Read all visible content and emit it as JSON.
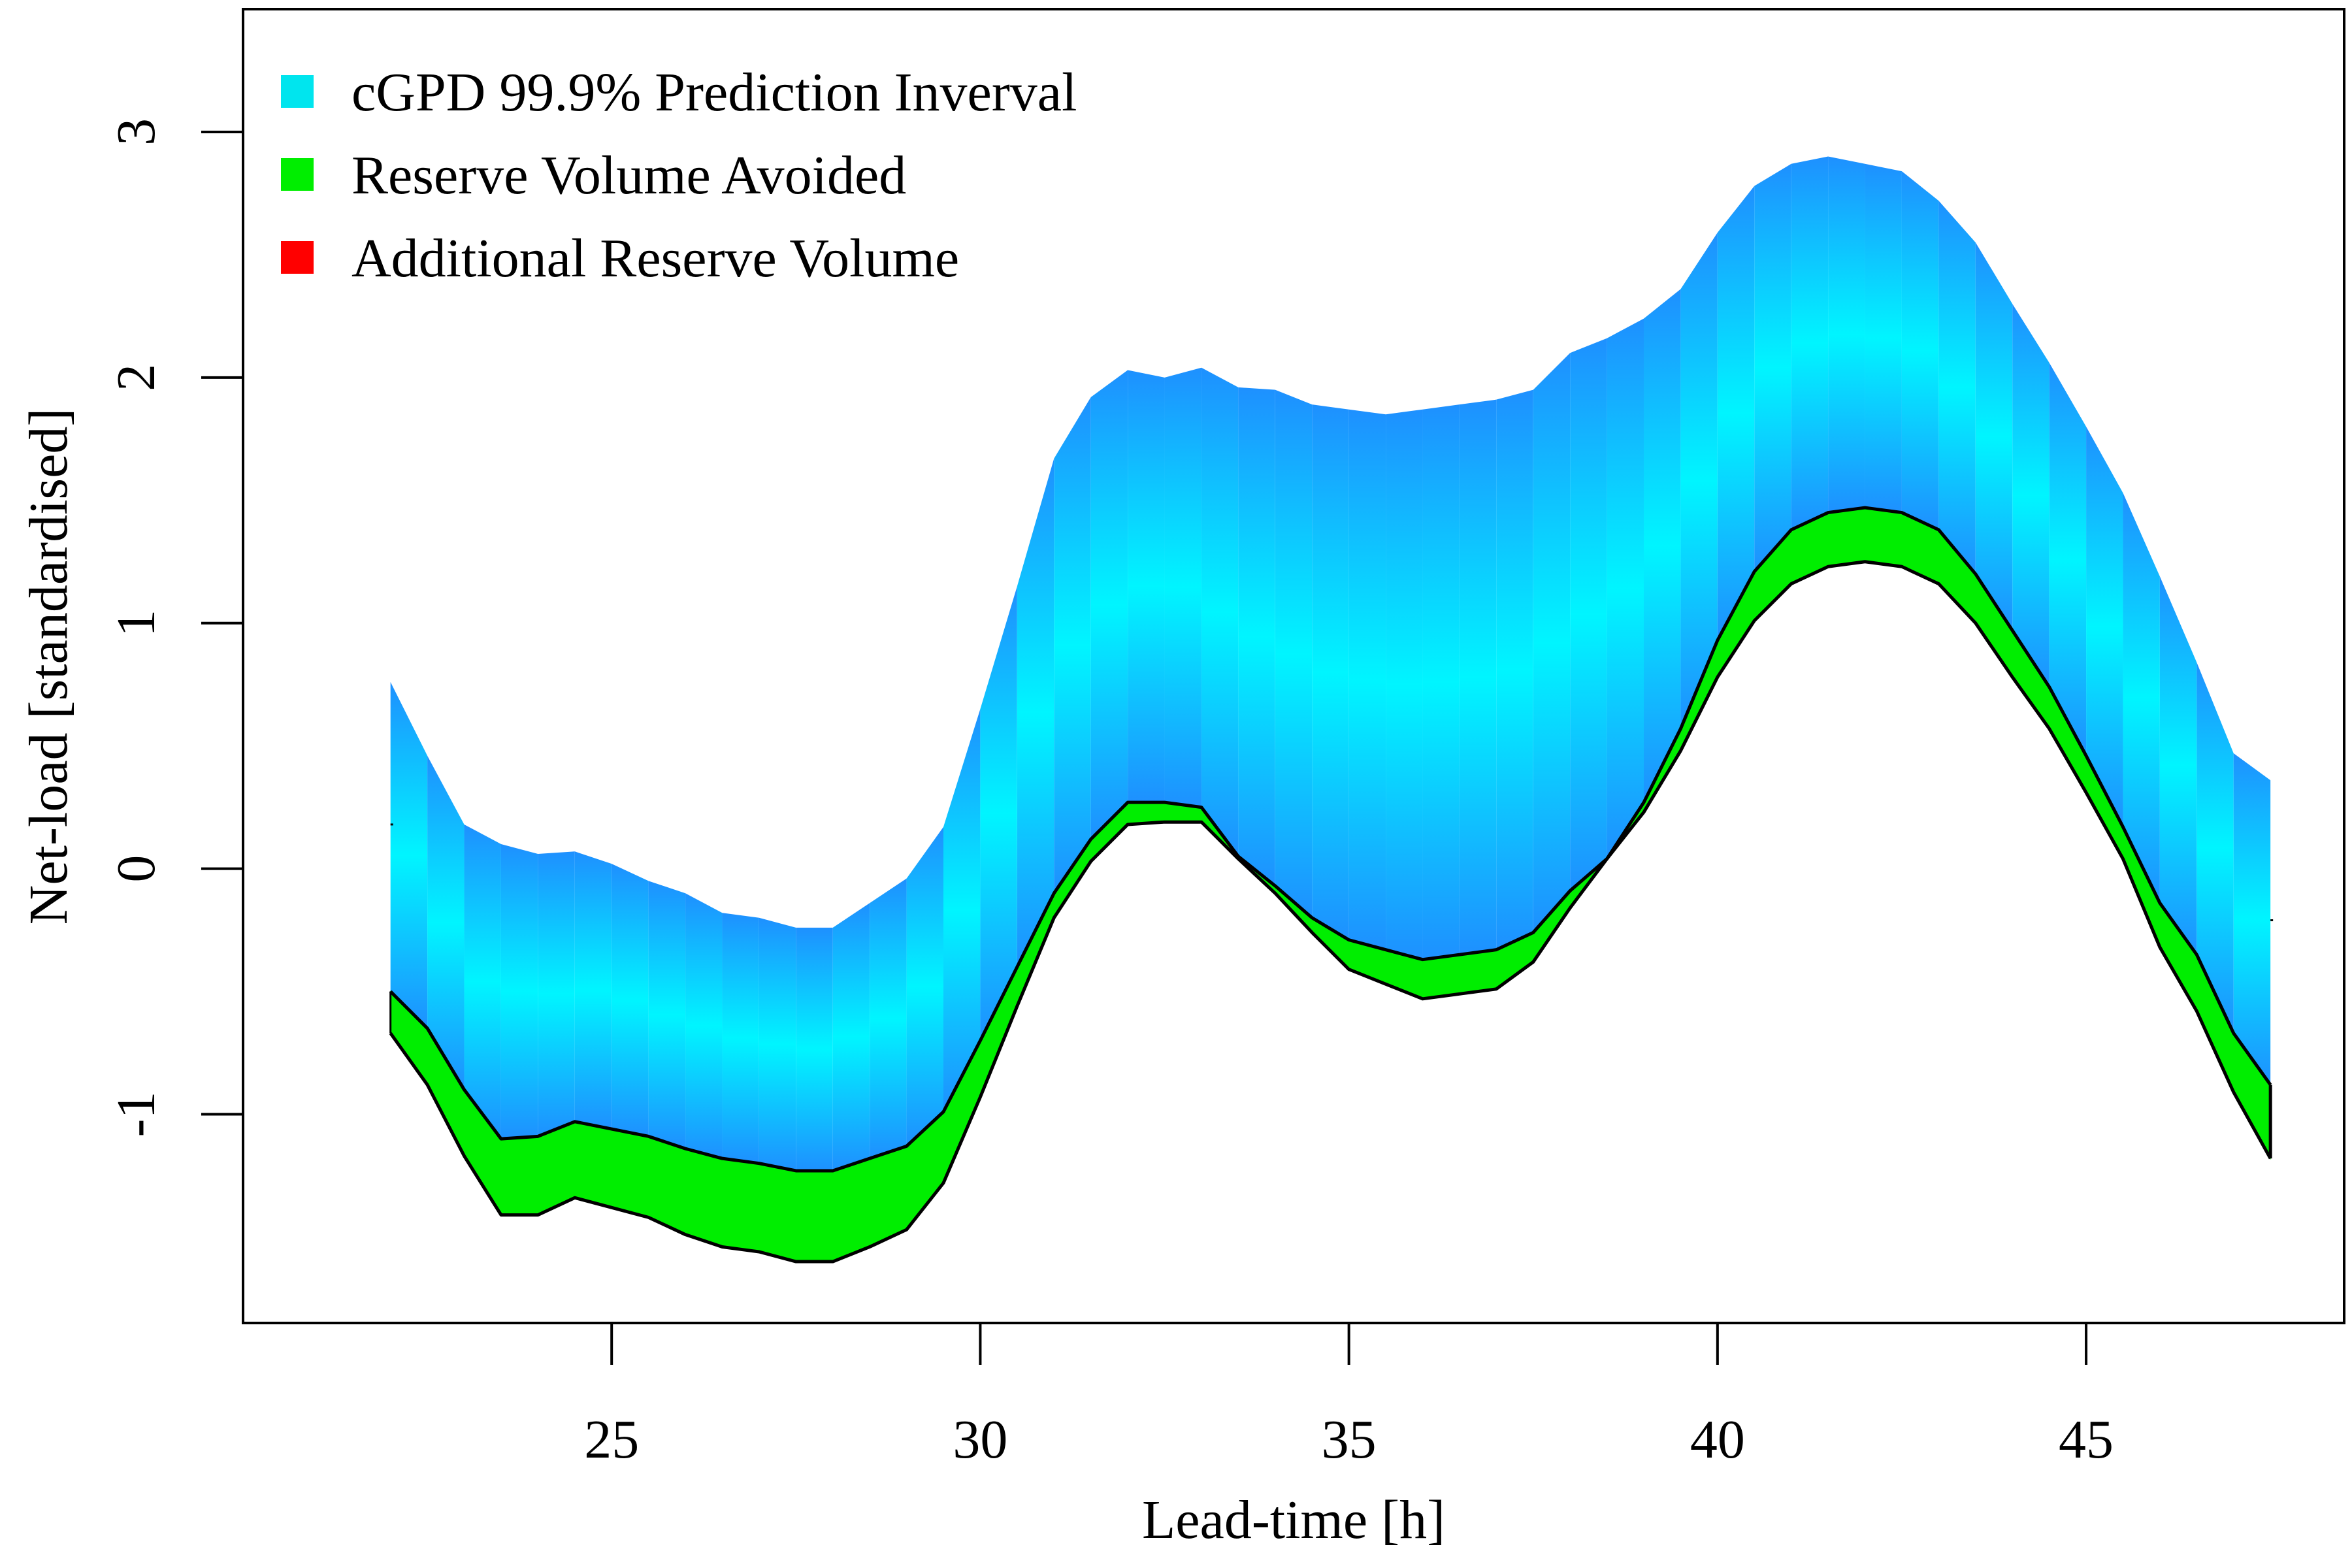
{
  "chart_data": {
    "type": "area",
    "title": "",
    "xlabel": "Lead-time [h]",
    "ylabel": "Net-load [standardised]",
    "xlim": [
      20,
      48.5
    ],
    "ylim": [
      -1.85,
      3.5
    ],
    "x_ticks": [
      25,
      30,
      35,
      40,
      45
    ],
    "y_ticks": [
      -1,
      0,
      1,
      2,
      3
    ],
    "legend_position": "top-left",
    "legend": [
      {
        "label": "cGPD 99.9% Prediction Inverval",
        "color": "#00e5ee"
      },
      {
        "label": "Reserve Volume Avoided",
        "color": "#00ee00"
      },
      {
        "label": "Additional Reserve Volume",
        "color": "#ff0000"
      }
    ],
    "colors": {
      "interval_edge": "#1e90ff",
      "interval_center": "#00f5ff",
      "avoided": "#00ee00",
      "additional": "#ff0000",
      "outline": "#000000"
    },
    "x": [
      22,
      22.5,
      23,
      23.5,
      24,
      24.5,
      25,
      25.5,
      26,
      26.5,
      27,
      27.5,
      28,
      28.5,
      29,
      29.5,
      30,
      30.5,
      31,
      31.5,
      32,
      32.5,
      33,
      33.5,
      34,
      34.5,
      35,
      35.5,
      36,
      36.5,
      37,
      37.5,
      38,
      38.5,
      39,
      39.5,
      40,
      40.5,
      41,
      41.5,
      42,
      42.5,
      43,
      43.5,
      44,
      44.5,
      45,
      45.5,
      46,
      46.5,
      47,
      47.5
    ],
    "series": [
      {
        "name": "Interval upper bound",
        "values": [
          0.76,
          0.46,
          0.18,
          0.1,
          0.06,
          0.07,
          0.02,
          -0.05,
          -0.1,
          -0.18,
          -0.2,
          -0.24,
          -0.24,
          -0.14,
          -0.04,
          0.17,
          0.65,
          1.15,
          1.67,
          1.92,
          2.03,
          2.0,
          2.04,
          1.96,
          1.95,
          1.89,
          1.87,
          1.85,
          1.87,
          1.89,
          1.91,
          1.95,
          2.1,
          2.16,
          2.24,
          2.36,
          2.59,
          2.78,
          2.87,
          2.9,
          2.87,
          2.84,
          2.72,
          2.55,
          2.3,
          2.06,
          1.8,
          1.53,
          1.19,
          0.84,
          0.47,
          0.36
        ]
      },
      {
        "name": "Interval lower bound",
        "values": [
          -0.5,
          -0.65,
          -0.9,
          -1.1,
          -1.09,
          -1.03,
          -1.06,
          -1.09,
          -1.14,
          -1.18,
          -1.2,
          -1.23,
          -1.23,
          -1.18,
          -1.13,
          -0.99,
          -0.7,
          -0.4,
          -0.1,
          0.12,
          0.27,
          0.27,
          0.25,
          0.05,
          -0.07,
          -0.2,
          -0.29,
          -0.33,
          -0.37,
          -0.35,
          -0.33,
          -0.26,
          -0.09,
          0.04,
          0.27,
          0.57,
          0.93,
          1.21,
          1.38,
          1.45,
          1.47,
          1.45,
          1.38,
          1.2,
          0.97,
          0.74,
          0.46,
          0.17,
          -0.14,
          -0.35,
          -0.67,
          -0.88
        ]
      },
      {
        "name": "Comparison lower bound",
        "values": [
          -0.67,
          -0.88,
          -1.17,
          -1.41,
          -1.41,
          -1.34,
          -1.38,
          -1.42,
          -1.49,
          -1.54,
          -1.56,
          -1.6,
          -1.6,
          -1.54,
          -1.47,
          -1.28,
          -0.93,
          -0.56,
          -0.2,
          0.03,
          0.18,
          0.19,
          0.19,
          0.04,
          -0.1,
          -0.26,
          -0.41,
          -0.47,
          -0.53,
          -0.51,
          -0.49,
          -0.38,
          -0.16,
          0.04,
          0.23,
          0.48,
          0.78,
          1.01,
          1.16,
          1.23,
          1.25,
          1.23,
          1.16,
          1.0,
          0.78,
          0.57,
          0.31,
          0.04,
          -0.32,
          -0.58,
          -0.91,
          -1.18
        ]
      }
    ]
  }
}
